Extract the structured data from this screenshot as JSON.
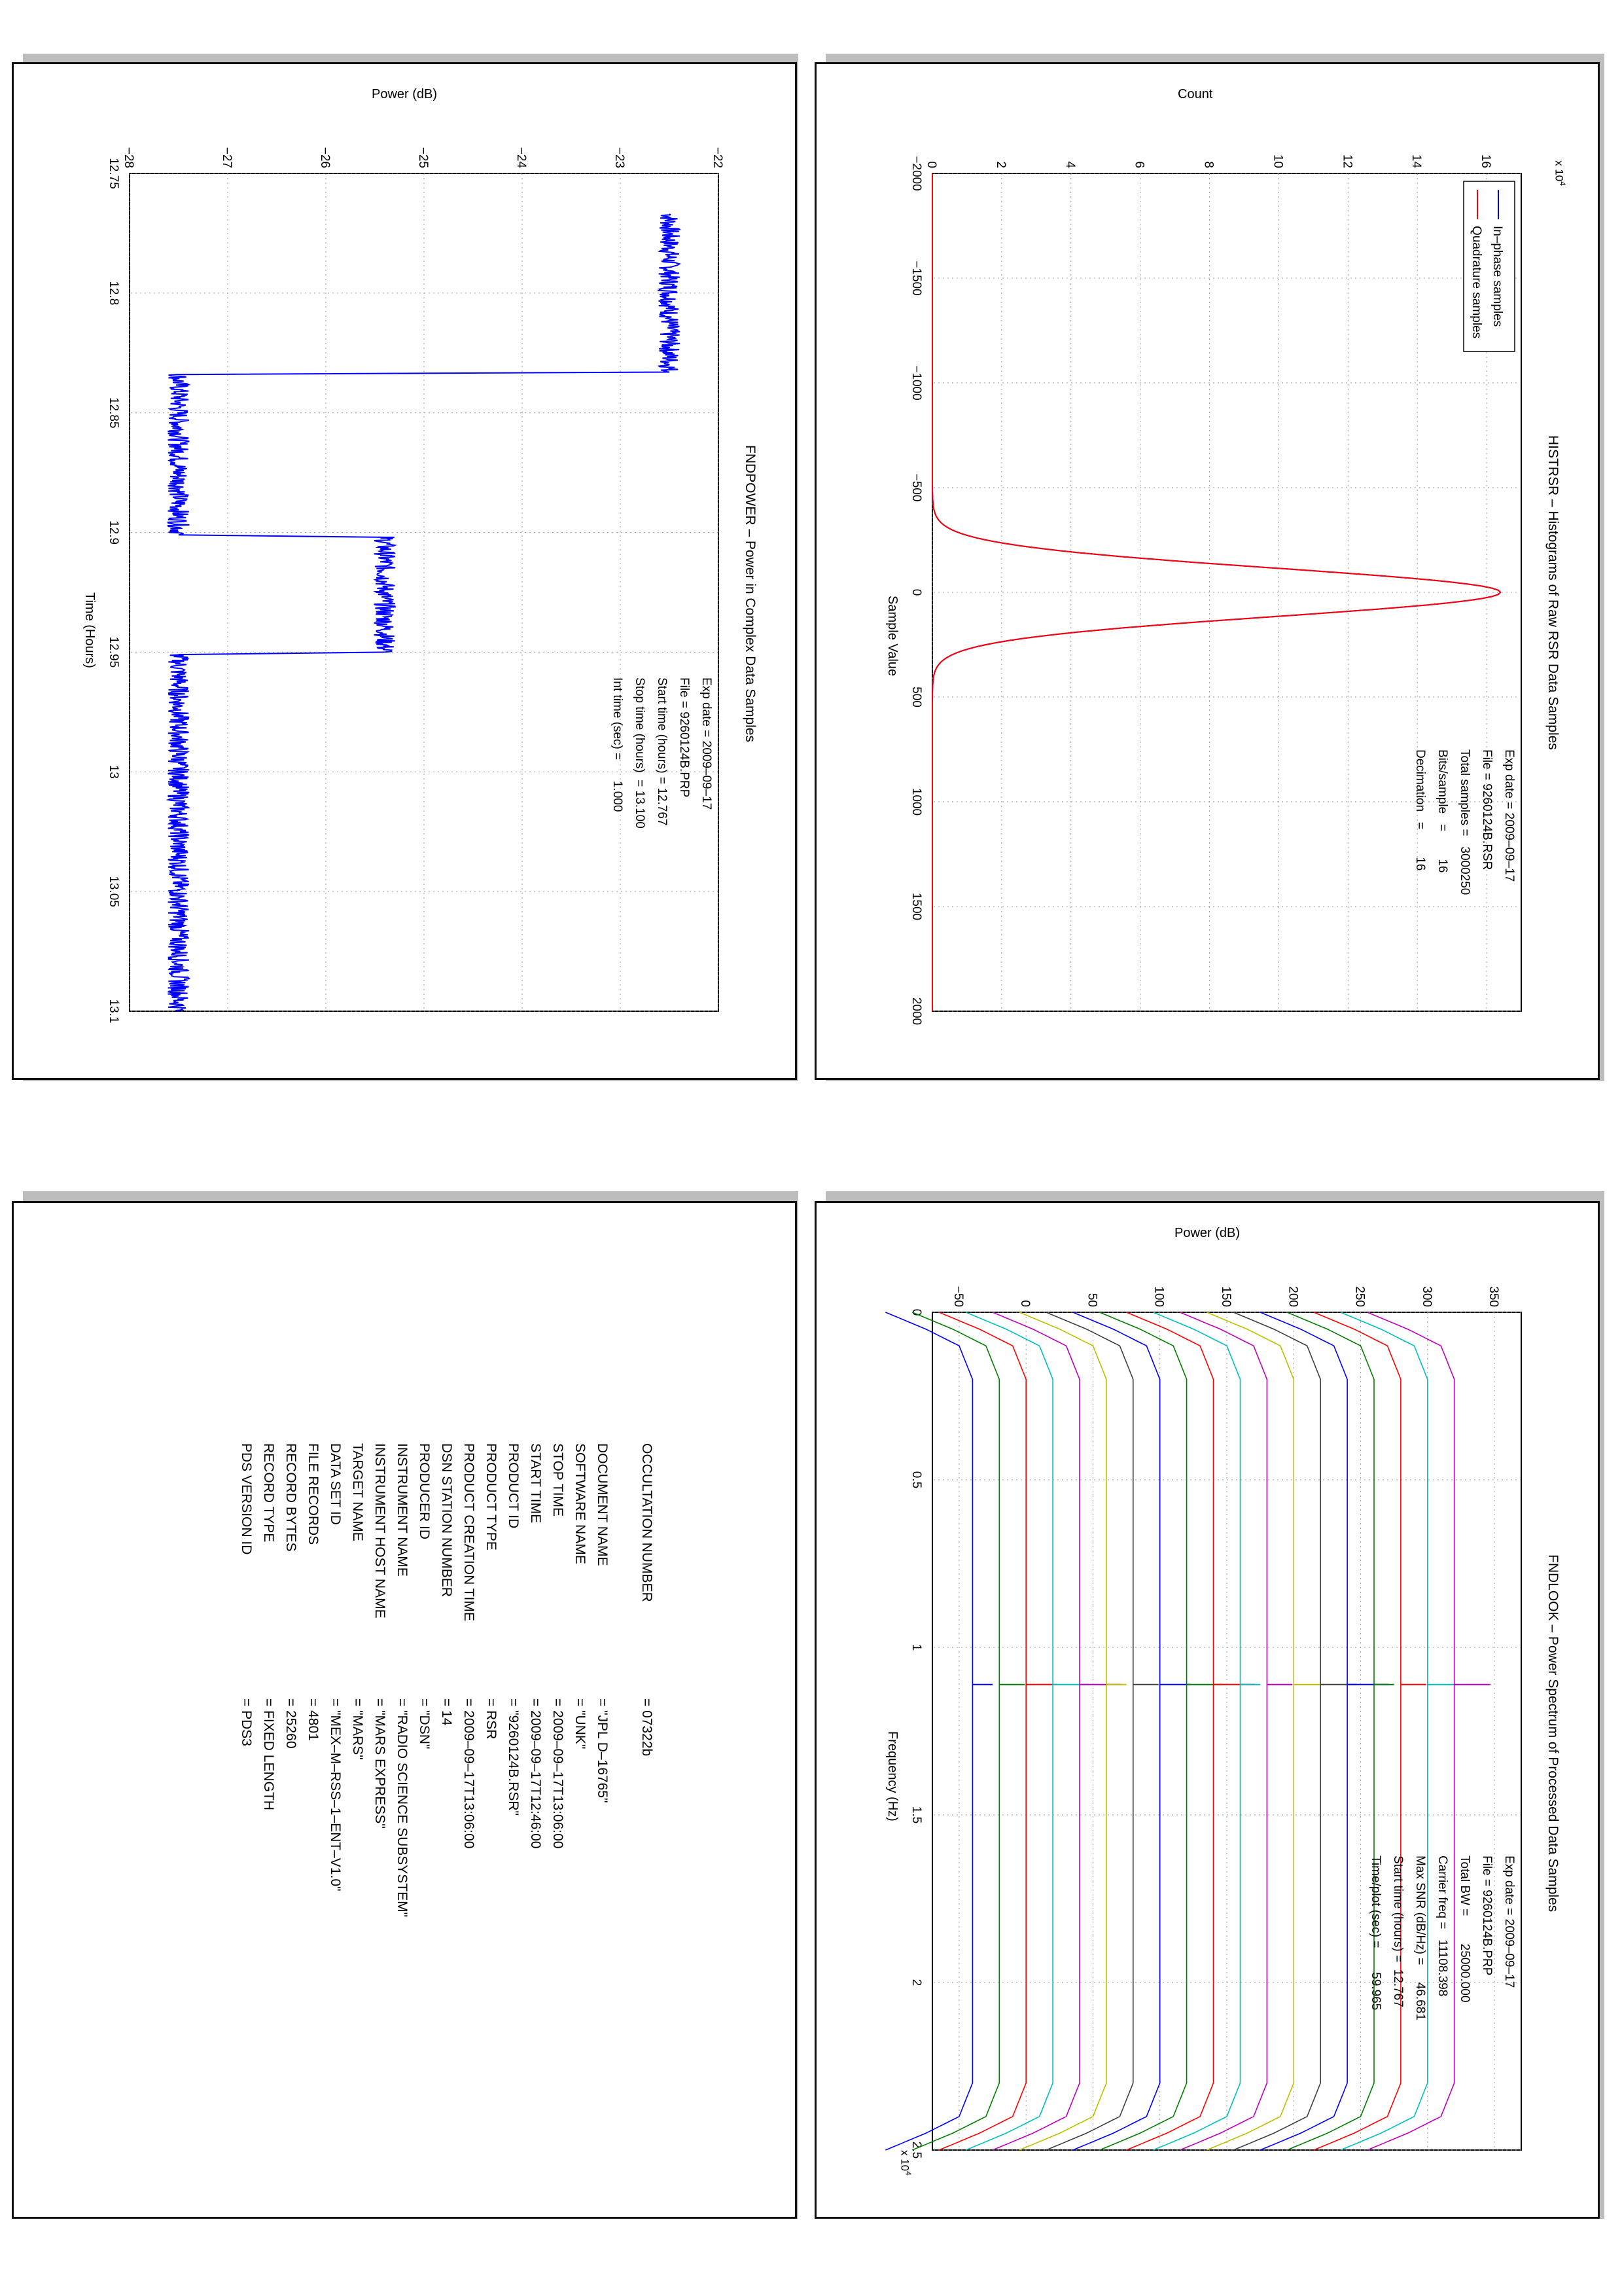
{
  "panels": {
    "histrsr": {
      "title": "HISTRSR – Histograms of Raw RSR Data Samples",
      "xlabel": "Sample Value",
      "ylabel": "Count",
      "exponent_label": "x 10",
      "exponent_power": "4",
      "legend": [
        "In–phase samples",
        "Quadrature samples"
      ],
      "info": [
        "Exp date = 2009–09–17",
        "File = 9260124B.RSR",
        "Total samples =   3000250",
        "Bits/sample   =        16",
        "Decimation   =        16"
      ],
      "colors": {
        "inphase": "#0000ff",
        "quadrature": "#ff0000"
      }
    },
    "fndpower": {
      "title": "FNDPOWER – Power in Complex Data Samples",
      "xlabel": "Time (Hours)",
      "ylabel": "Power (dB)",
      "info": [
        "Exp date = 2009–09–17",
        "File = 9260124B.PRP",
        "Start time (hours) = 12.767",
        "Stop time (hours)  = 13.100",
        "Int time (sec) =      1.000"
      ],
      "color": "#0000ff"
    },
    "fndlook": {
      "title": "FNDLOOK – Power Spectrum of Processed Data Samples",
      "xlabel": "Frequency (Hz)",
      "ylabel": "Power (dB)",
      "exponent_label": "x 10",
      "exponent_power": "4",
      "info": [
        "Exp date = 2009–09–17",
        "File = 9260124B.PRP",
        "Total BW =        25000.000",
        "Carrier freq =   11108.398",
        "Max SNR (dB/Hz) =     46.681",
        "Start time (hours) =  12.767",
        "Time/plot (sec) =       59.965"
      ]
    },
    "label_table": {
      "rows": [
        {
          "key": "PDS VERSION ID",
          "value": "=  PDS3"
        },
        {
          "key": "RECORD TYPE",
          "value": "=  FIXED LENGTH"
        },
        {
          "key": "RECORD BYTES",
          "value": "=  25260"
        },
        {
          "key": "FILE RECORDS",
          "value": "=  4801"
        },
        {
          "key": "DATA SET ID",
          "value": "=  \"MEX–M–RSS–1–ENT–V1.0\""
        },
        {
          "key": "TARGET NAME",
          "value": "=  \"MARS\""
        },
        {
          "key": "INSTRUMENT HOST NAME",
          "value": "=  \"MARS EXPRESS\""
        },
        {
          "key": "INSTRUMENT NAME",
          "value": "=  \"RADIO SCIENCE SUBSYSTEM\""
        },
        {
          "key": "PRODUCER ID",
          "value": "=  \"DSN\""
        },
        {
          "key": "DSN STATION NUMBER",
          "value": "=  14"
        },
        {
          "key": "PRODUCT CREATION TIME",
          "value": "=  2009–09–17T13:06:00"
        },
        {
          "key": "PRODUCT TYPE",
          "value": "=  RSR"
        },
        {
          "key": "PRODUCT ID",
          "value": "=  \"9260124B.RSR\""
        },
        {
          "key": "START TIME",
          "value": "=  2009–09–17T12:46:00"
        },
        {
          "key": "STOP TIME",
          "value": "=  2009–09–17T13:06:00"
        },
        {
          "key": "SOFTWARE NAME",
          "value": "=  \"UNK\""
        },
        {
          "key": "DOCUMENT NAME",
          "value": "=  \"JPL D–16765\""
        },
        {
          "key": "",
          "value": ""
        },
        {
          "key": "OCCULTATION NUMBER",
          "value": "=  07322b"
        }
      ]
    }
  },
  "chart_data": [
    {
      "type": "line",
      "title": "HISTRSR – Histograms of Raw RSR Data Samples",
      "xlabel": "Sample Value",
      "ylabel": "Count",
      "y_multiplier": "x 10^4",
      "xlim": [
        -2000,
        2000
      ],
      "ylim": [
        0,
        17
      ],
      "xticks": [
        -2000,
        -1500,
        -1000,
        -500,
        0,
        500,
        1000,
        1500,
        2000
      ],
      "yticks": [
        0,
        2,
        4,
        6,
        8,
        10,
        12,
        14,
        16
      ],
      "grid": true,
      "legend_position": "top-left",
      "x": [
        -2000,
        -400,
        -300,
        -250,
        -200,
        -150,
        -100,
        -50,
        0,
        50,
        100,
        150,
        200,
        250,
        300,
        400,
        2000
      ],
      "series": [
        {
          "name": "In–phase samples",
          "values": [
            0,
            0.15,
            0.9,
            1.8,
            3.4,
            6.1,
            9.7,
            13.8,
            16.4,
            13.8,
            9.7,
            6.1,
            3.4,
            1.8,
            0.9,
            0.15,
            0
          ]
        },
        {
          "name": "Quadrature samples",
          "values": [
            0,
            0.15,
            0.9,
            1.8,
            3.4,
            6.1,
            9.7,
            13.8,
            16.4,
            13.8,
            9.7,
            6.1,
            3.4,
            1.8,
            0.9,
            0.15,
            0
          ]
        }
      ]
    },
    {
      "type": "line",
      "title": "FNDPOWER – Power in Complex Data Samples",
      "xlabel": "Time (Hours)",
      "ylabel": "Power (dB)",
      "xlim": [
        12.75,
        13.1
      ],
      "ylim": [
        -28,
        -22
      ],
      "xticks": [
        12.75,
        12.8,
        12.85,
        12.9,
        12.95,
        13,
        13.05,
        13.1
      ],
      "yticks": [
        -28,
        -27,
        -26,
        -25,
        -24,
        -23,
        -22
      ],
      "grid": true,
      "x": [
        12.767,
        12.8,
        12.833,
        12.834,
        12.86,
        12.901,
        12.902,
        12.93,
        12.95,
        12.951,
        13.0,
        13.05,
        13.1
      ],
      "series": [
        {
          "name": "",
          "values": [
            -22.5,
            -22.5,
            -22.5,
            -27.5,
            -27.5,
            -27.5,
            -25.4,
            -25.4,
            -25.4,
            -27.5,
            -27.5,
            -27.5,
            -27.5
          ]
        }
      ]
    },
    {
      "type": "line",
      "title": "FNDLOOK – Power Spectrum of Processed Data Samples",
      "xlabel": "Frequency (Hz)",
      "ylabel": "Power (dB)",
      "x_multiplier": "x 10^4",
      "xlim": [
        0,
        25000
      ],
      "ylim": [
        -70,
        370
      ],
      "xticks": [
        0,
        5000,
        10000,
        15000,
        20000,
        25000
      ],
      "yticks": [
        -50,
        0,
        50,
        100,
        150,
        200,
        250,
        300,
        350
      ],
      "grid": true,
      "carrier_freq": 11108.398,
      "x": [
        0,
        500,
        1000,
        2000,
        11000,
        23000,
        24000,
        24500,
        25000
      ],
      "series_offsets": [
        -40,
        -20,
        0,
        20,
        40,
        60,
        80,
        100,
        120,
        140,
        160,
        180,
        200,
        220,
        240,
        260,
        280,
        300,
        320
      ],
      "series_colors": [
        "#0000ff",
        "#008000",
        "#ff0000",
        "#00bfbf",
        "#bf00bf",
        "#bfbf00",
        "#404040",
        "#0000ff",
        "#008000",
        "#ff0000",
        "#00bfbf",
        "#bf00bf",
        "#bfbf00",
        "#404040",
        "#0000ff",
        "#008000",
        "#ff0000",
        "#00bfbf",
        "#bf00bf"
      ],
      "edge_profile": [
        -65,
        -35,
        -10,
        0,
        0,
        0,
        -10,
        -35,
        -65
      ]
    }
  ]
}
